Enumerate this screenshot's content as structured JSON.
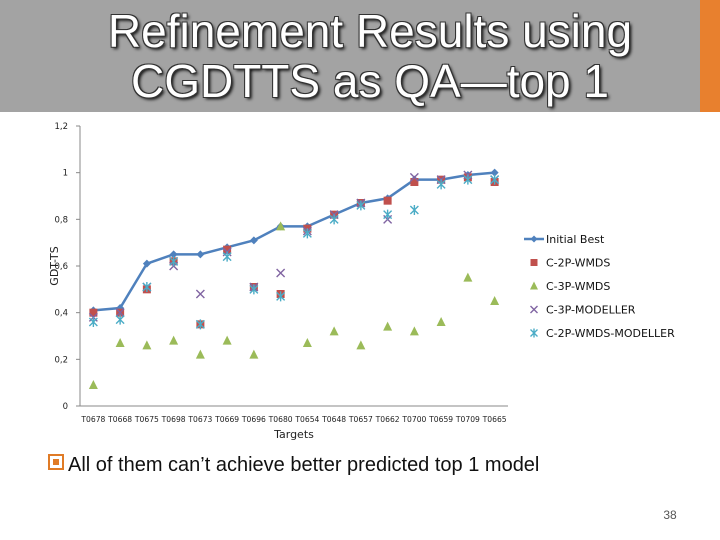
{
  "slide": {
    "title": "Refinement Results using CGDTTS as QA—top 1",
    "bullet": "All of them can’t achieve better predicted top 1 model",
    "page_number": "38"
  },
  "chart_data": {
    "type": "line",
    "title": "",
    "xlabel": "Targets",
    "ylabel": "GDT-TS",
    "ylim": [
      0,
      1.2
    ],
    "yticks": [
      0,
      0.2,
      0.4,
      0.6,
      0.8,
      1,
      1.2
    ],
    "ytick_labels": [
      "0",
      "0,2",
      "0,4",
      "0,6",
      "0,8",
      "1",
      "1,2"
    ],
    "grid": false,
    "legend_position": "right",
    "categories": [
      "T0678",
      "T0668",
      "T0675",
      "T0698",
      "T0673",
      "T0669",
      "T0696",
      "T0680",
      "T0654",
      "T0648",
      "T0657",
      "T0662",
      "T0700",
      "T0659",
      "T0709",
      "T0665"
    ],
    "series": [
      {
        "name": "Initial Best",
        "marker": "diamond-line",
        "color": "#4f81bd",
        "values": [
          0.41,
          0.42,
          0.61,
          0.65,
          0.65,
          0.68,
          0.71,
          0.77,
          0.77,
          0.82,
          0.87,
          0.89,
          0.97,
          0.97,
          0.99,
          1.0
        ]
      },
      {
        "name": "C-2P-WMDS",
        "marker": "square",
        "color": "#c0504d",
        "values": [
          0.4,
          0.4,
          0.5,
          0.62,
          0.35,
          0.67,
          0.51,
          0.48,
          0.76,
          0.82,
          0.87,
          0.88,
          0.96,
          0.97,
          0.98,
          0.96
        ]
      },
      {
        "name": "C-3P-WMDS",
        "marker": "triangle",
        "color": "#9bbb59",
        "values": [
          0.09,
          0.27,
          0.26,
          0.28,
          0.22,
          0.28,
          0.22,
          0.77,
          0.27,
          0.32,
          0.26,
          0.34,
          0.32,
          0.36,
          0.55,
          0.45
        ]
      },
      {
        "name": "C-3P-MODELLER",
        "marker": "x",
        "color": "#8064a2",
        "values": [
          0.38,
          0.4,
          0.51,
          0.6,
          0.48,
          0.66,
          0.51,
          0.57,
          0.75,
          0.82,
          0.87,
          0.8,
          0.98,
          0.97,
          0.99,
          0.97
        ]
      },
      {
        "name": "C-2P-WMDS-MODELLER",
        "marker": "star",
        "color": "#4bacc6",
        "values": [
          0.36,
          0.37,
          0.51,
          0.62,
          0.35,
          0.64,
          0.5,
          0.47,
          0.74,
          0.8,
          0.86,
          0.82,
          0.84,
          0.95,
          0.97,
          0.97
        ]
      }
    ]
  }
}
